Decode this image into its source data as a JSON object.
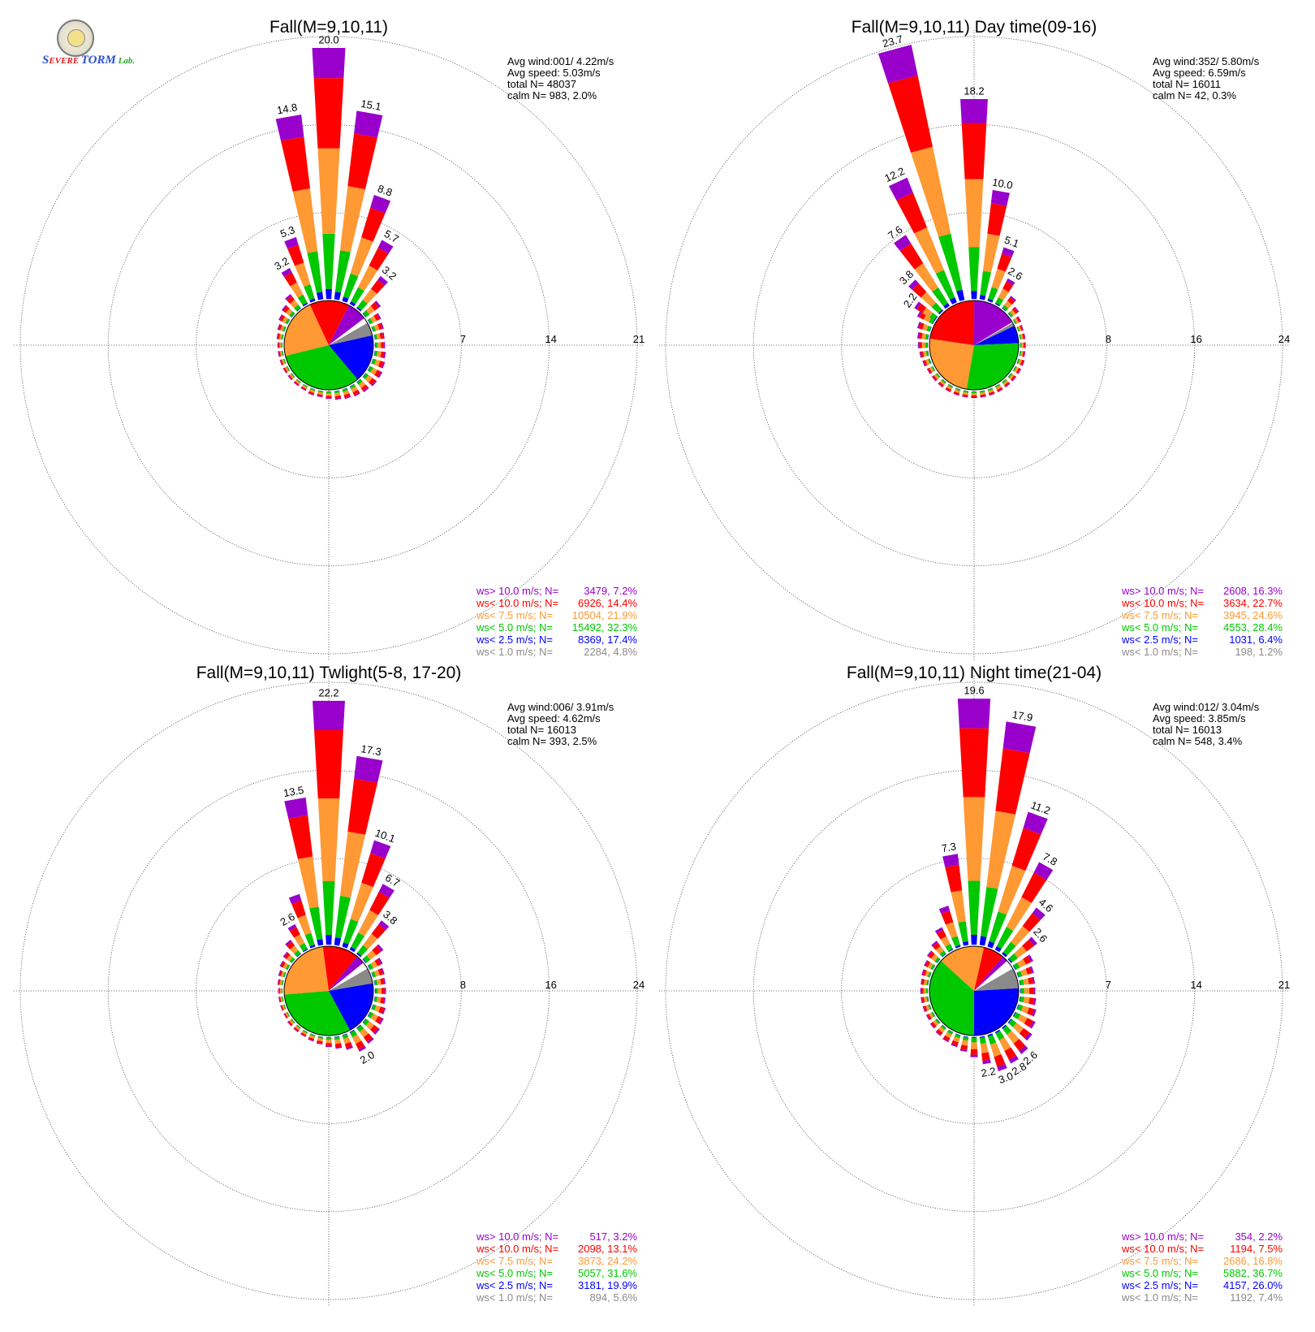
{
  "logo": {
    "part1": "S",
    "part2": "EVERE",
    "part3": "TORM",
    "part4": "Lab."
  },
  "speed_class_colors": [
    "#8a8a8a",
    "#0000ff",
    "#00c800",
    "#ff9933",
    "#ff0000",
    "#9900cc"
  ],
  "legend_labels": [
    "ws<  1.0 m/s; N=",
    "ws<  2.5 m/s; N=",
    "ws<  5.0 m/s; N=",
    "ws<  7.5 m/s; N=",
    "ws< 10.0 m/s; N=",
    "ws> 10.0 m/s; N="
  ],
  "chart_data": [
    {
      "type": "windrose",
      "title": "Fall(M=9,10,11)",
      "ring_labels": [
        "7",
        "14",
        "21"
      ],
      "rmax": 21,
      "stats": [
        "Avg wind:001/ 4.22m/s",
        "Avg speed: 5.03m/s",
        "total N=     48037",
        "calm N=    983,   2.0%"
      ],
      "legend_values": [
        "2284,  4.8%",
        "8369, 17.4%",
        "15492, 32.3%",
        "10504, 21.9%",
        "6926, 14.4%",
        "3479,  7.2%"
      ],
      "bar_labels": [
        {
          "dir": 0,
          "text": "20.0"
        },
        {
          "dir": 10,
          "text": "15.1"
        },
        {
          "dir": 20,
          "text": "8.8"
        },
        {
          "dir": 30,
          "text": "5.7"
        },
        {
          "dir": 40,
          "text": "3.2"
        },
        {
          "dir": 350,
          "text": "14.8"
        },
        {
          "dir": 340,
          "text": "5.3"
        },
        {
          "dir": 330,
          "text": "3.2"
        }
      ],
      "bars": [
        {
          "dir": 0,
          "total": 20.0
        },
        {
          "dir": 10,
          "total": 15.1
        },
        {
          "dir": 20,
          "total": 8.8
        },
        {
          "dir": 30,
          "total": 5.7
        },
        {
          "dir": 40,
          "total": 3.2
        },
        {
          "dir": 50,
          "total": 1.5
        },
        {
          "dir": 60,
          "total": 1.0
        },
        {
          "dir": 70,
          "total": 0.9
        },
        {
          "dir": 80,
          "total": 0.8
        },
        {
          "dir": 90,
          "total": 0.8
        },
        {
          "dir": 100,
          "total": 0.9
        },
        {
          "dir": 110,
          "total": 1.0
        },
        {
          "dir": 120,
          "total": 1.1
        },
        {
          "dir": 130,
          "total": 1.1
        },
        {
          "dir": 140,
          "total": 1.0
        },
        {
          "dir": 150,
          "total": 0.9
        },
        {
          "dir": 160,
          "total": 0.8
        },
        {
          "dir": 170,
          "total": 0.7
        },
        {
          "dir": 180,
          "total": 0.6
        },
        {
          "dir": 190,
          "total": 0.5
        },
        {
          "dir": 200,
          "total": 0.5
        },
        {
          "dir": 210,
          "total": 0.4
        },
        {
          "dir": 220,
          "total": 0.4
        },
        {
          "dir": 230,
          "total": 0.4
        },
        {
          "dir": 240,
          "total": 0.4
        },
        {
          "dir": 250,
          "total": 0.4
        },
        {
          "dir": 260,
          "total": 0.4
        },
        {
          "dir": 270,
          "total": 0.4
        },
        {
          "dir": 280,
          "total": 0.5
        },
        {
          "dir": 290,
          "total": 0.6
        },
        {
          "dir": 300,
          "total": 0.8
        },
        {
          "dir": 310,
          "total": 1.0
        },
        {
          "dir": 320,
          "total": 1.4
        },
        {
          "dir": 330,
          "total": 3.2
        },
        {
          "dir": 340,
          "total": 5.3
        },
        {
          "dir": 350,
          "total": 14.8
        }
      ]
    },
    {
      "type": "windrose",
      "title": "Fall(M=9,10,11) Day time(09-16)",
      "ring_labels": [
        "8",
        "16",
        "24"
      ],
      "rmax": 24,
      "stats": [
        "Avg wind:352/ 5.80m/s",
        "Avg speed: 6.59m/s",
        "total N=     16011",
        "calm N=     42,   0.3%"
      ],
      "legend_values": [
        "198,  1.2%",
        "1031,  6.4%",
        "4553, 28.4%",
        "3945, 24.6%",
        "3634, 22.7%",
        "2608, 16.3%"
      ],
      "bar_labels": [
        {
          "dir": 345,
          "text": "23.7"
        },
        {
          "dir": 0,
          "text": "18.2"
        },
        {
          "dir": 10,
          "text": "10.0"
        },
        {
          "dir": 20,
          "text": "5.1"
        },
        {
          "dir": 30,
          "text": "2.6"
        },
        {
          "dir": 335,
          "text": "12.2"
        },
        {
          "dir": 325,
          "text": "7.6"
        },
        {
          "dir": 315,
          "text": "3.8"
        },
        {
          "dir": 305,
          "text": "2.2"
        }
      ],
      "bars": [
        {
          "dir": 0,
          "total": 18.2
        },
        {
          "dir": 10,
          "total": 10.0
        },
        {
          "dir": 20,
          "total": 5.1
        },
        {
          "dir": 30,
          "total": 2.6
        },
        {
          "dir": 40,
          "total": 1.4
        },
        {
          "dir": 50,
          "total": 0.9
        },
        {
          "dir": 60,
          "total": 0.6
        },
        {
          "dir": 70,
          "total": 0.5
        },
        {
          "dir": 80,
          "total": 0.5
        },
        {
          "dir": 90,
          "total": 0.5
        },
        {
          "dir": 100,
          "total": 0.5
        },
        {
          "dir": 110,
          "total": 0.6
        },
        {
          "dir": 120,
          "total": 0.6
        },
        {
          "dir": 130,
          "total": 0.6
        },
        {
          "dir": 140,
          "total": 0.6
        },
        {
          "dir": 150,
          "total": 0.6
        },
        {
          "dir": 160,
          "total": 0.6
        },
        {
          "dir": 170,
          "total": 0.6
        },
        {
          "dir": 180,
          "total": 0.6
        },
        {
          "dir": 190,
          "total": 0.6
        },
        {
          "dir": 200,
          "total": 0.6
        },
        {
          "dir": 210,
          "total": 0.6
        },
        {
          "dir": 220,
          "total": 0.6
        },
        {
          "dir": 230,
          "total": 0.6
        },
        {
          "dir": 240,
          "total": 0.6
        },
        {
          "dir": 250,
          "total": 0.7
        },
        {
          "dir": 260,
          "total": 0.8
        },
        {
          "dir": 270,
          "total": 0.9
        },
        {
          "dir": 280,
          "total": 1.0
        },
        {
          "dir": 290,
          "total": 1.2
        },
        {
          "dir": 300,
          "total": 1.6
        },
        {
          "dir": 305,
          "total": 2.2
        },
        {
          "dir": 315,
          "total": 3.8
        },
        {
          "dir": 325,
          "total": 7.6
        },
        {
          "dir": 335,
          "total": 12.2
        },
        {
          "dir": 345,
          "total": 23.7
        }
      ]
    },
    {
      "type": "windrose",
      "title": "Fall(M=9,10,11) Twlight(5-8, 17-20)",
      "ring_labels": [
        "8",
        "16",
        "24"
      ],
      "rmax": 24,
      "stats": [
        "Avg wind:006/ 3.91m/s",
        "Avg speed: 4.62m/s",
        "total N=     16013",
        "calm N=    393,   2.5%"
      ],
      "legend_values": [
        "894,  5.6%",
        "3181, 19.9%",
        "5057, 31.6%",
        "3873, 24.2%",
        "2098, 13.1%",
        "517,  3.2%"
      ],
      "bar_labels": [
        {
          "dir": 0,
          "text": "22.2"
        },
        {
          "dir": 10,
          "text": "17.3"
        },
        {
          "dir": 20,
          "text": "10.1"
        },
        {
          "dir": 30,
          "text": "6.7"
        },
        {
          "dir": 40,
          "text": "3.8"
        },
        {
          "dir": 350,
          "text": "13.5"
        },
        {
          "dir": 330,
          "text": "2.6"
        },
        {
          "dir": 150,
          "text": "2.0"
        }
      ],
      "bars": [
        {
          "dir": 0,
          "total": 22.2
        },
        {
          "dir": 10,
          "total": 17.3
        },
        {
          "dir": 20,
          "total": 10.1
        },
        {
          "dir": 30,
          "total": 6.7
        },
        {
          "dir": 40,
          "total": 3.8
        },
        {
          "dir": 50,
          "total": 2.0
        },
        {
          "dir": 60,
          "total": 1.3
        },
        {
          "dir": 70,
          "total": 1.1
        },
        {
          "dir": 80,
          "total": 1.0
        },
        {
          "dir": 90,
          "total": 1.0
        },
        {
          "dir": 100,
          "total": 1.0
        },
        {
          "dir": 110,
          "total": 1.2
        },
        {
          "dir": 120,
          "total": 1.4
        },
        {
          "dir": 130,
          "total": 1.6
        },
        {
          "dir": 140,
          "total": 1.8
        },
        {
          "dir": 150,
          "total": 2.0
        },
        {
          "dir": 160,
          "total": 1.4
        },
        {
          "dir": 170,
          "total": 1.1
        },
        {
          "dir": 180,
          "total": 0.9
        },
        {
          "dir": 190,
          "total": 0.7
        },
        {
          "dir": 200,
          "total": 0.6
        },
        {
          "dir": 210,
          "total": 0.5
        },
        {
          "dir": 220,
          "total": 0.5
        },
        {
          "dir": 230,
          "total": 0.5
        },
        {
          "dir": 240,
          "total": 0.4
        },
        {
          "dir": 250,
          "total": 0.4
        },
        {
          "dir": 260,
          "total": 0.4
        },
        {
          "dir": 270,
          "total": 0.4
        },
        {
          "dir": 280,
          "total": 0.5
        },
        {
          "dir": 290,
          "total": 0.6
        },
        {
          "dir": 300,
          "total": 0.8
        },
        {
          "dir": 310,
          "total": 1.0
        },
        {
          "dir": 320,
          "total": 1.6
        },
        {
          "dir": 330,
          "total": 2.6
        },
        {
          "dir": 340,
          "total": 5.0
        },
        {
          "dir": 350,
          "total": 13.5
        }
      ]
    },
    {
      "type": "windrose",
      "title": "Fall(M=9,10,11) Night time(21-04)",
      "ring_labels": [
        "7",
        "14",
        "21"
      ],
      "rmax": 21,
      "stats": [
        "Avg wind:012/ 3.04m/s",
        "Avg speed: 3.85m/s",
        "total N=     16013",
        "calm N=    548,   3.4%"
      ],
      "legend_values": [
        "1192,  7.4%",
        "4157, 26.0%",
        "5882, 36.7%",
        "2686, 16.8%",
        "1194,  7.5%",
        "354,  2.2%"
      ],
      "bar_labels": [
        {
          "dir": 0,
          "text": "19.6"
        },
        {
          "dir": 10,
          "text": "17.9"
        },
        {
          "dir": 20,
          "text": "11.2"
        },
        {
          "dir": 30,
          "text": "7.8"
        },
        {
          "dir": 40,
          "text": "4.6"
        },
        {
          "dir": 50,
          "text": "2.6"
        },
        {
          "dir": 350,
          "text": "7.3"
        },
        {
          "dir": 140,
          "text": "2.6"
        },
        {
          "dir": 150,
          "text": "2.8"
        },
        {
          "dir": 160,
          "text": "3.0"
        },
        {
          "dir": 170,
          "text": "2.2"
        }
      ],
      "bars": [
        {
          "dir": 0,
          "total": 19.6
        },
        {
          "dir": 10,
          "total": 17.9
        },
        {
          "dir": 20,
          "total": 11.2
        },
        {
          "dir": 30,
          "total": 7.8
        },
        {
          "dir": 40,
          "total": 4.6
        },
        {
          "dir": 50,
          "total": 2.6
        },
        {
          "dir": 60,
          "total": 1.6
        },
        {
          "dir": 70,
          "total": 1.3
        },
        {
          "dir": 80,
          "total": 1.2
        },
        {
          "dir": 90,
          "total": 1.2
        },
        {
          "dir": 100,
          "total": 1.3
        },
        {
          "dir": 110,
          "total": 1.5
        },
        {
          "dir": 120,
          "total": 1.8
        },
        {
          "dir": 130,
          "total": 2.1
        },
        {
          "dir": 140,
          "total": 2.6
        },
        {
          "dir": 150,
          "total": 2.8
        },
        {
          "dir": 160,
          "total": 3.0
        },
        {
          "dir": 170,
          "total": 2.2
        },
        {
          "dir": 180,
          "total": 1.6
        },
        {
          "dir": 190,
          "total": 1.2
        },
        {
          "dir": 200,
          "total": 1.0
        },
        {
          "dir": 210,
          "total": 0.9
        },
        {
          "dir": 220,
          "total": 0.8
        },
        {
          "dir": 230,
          "total": 0.7
        },
        {
          "dir": 240,
          "total": 0.6
        },
        {
          "dir": 250,
          "total": 0.6
        },
        {
          "dir": 260,
          "total": 0.6
        },
        {
          "dir": 270,
          "total": 0.6
        },
        {
          "dir": 280,
          "total": 0.6
        },
        {
          "dir": 290,
          "total": 0.7
        },
        {
          "dir": 300,
          "total": 0.8
        },
        {
          "dir": 310,
          "total": 1.0
        },
        {
          "dir": 320,
          "total": 1.3
        },
        {
          "dir": 330,
          "total": 2.0
        },
        {
          "dir": 340,
          "total": 3.4
        },
        {
          "dir": 350,
          "total": 7.3
        }
      ]
    }
  ]
}
